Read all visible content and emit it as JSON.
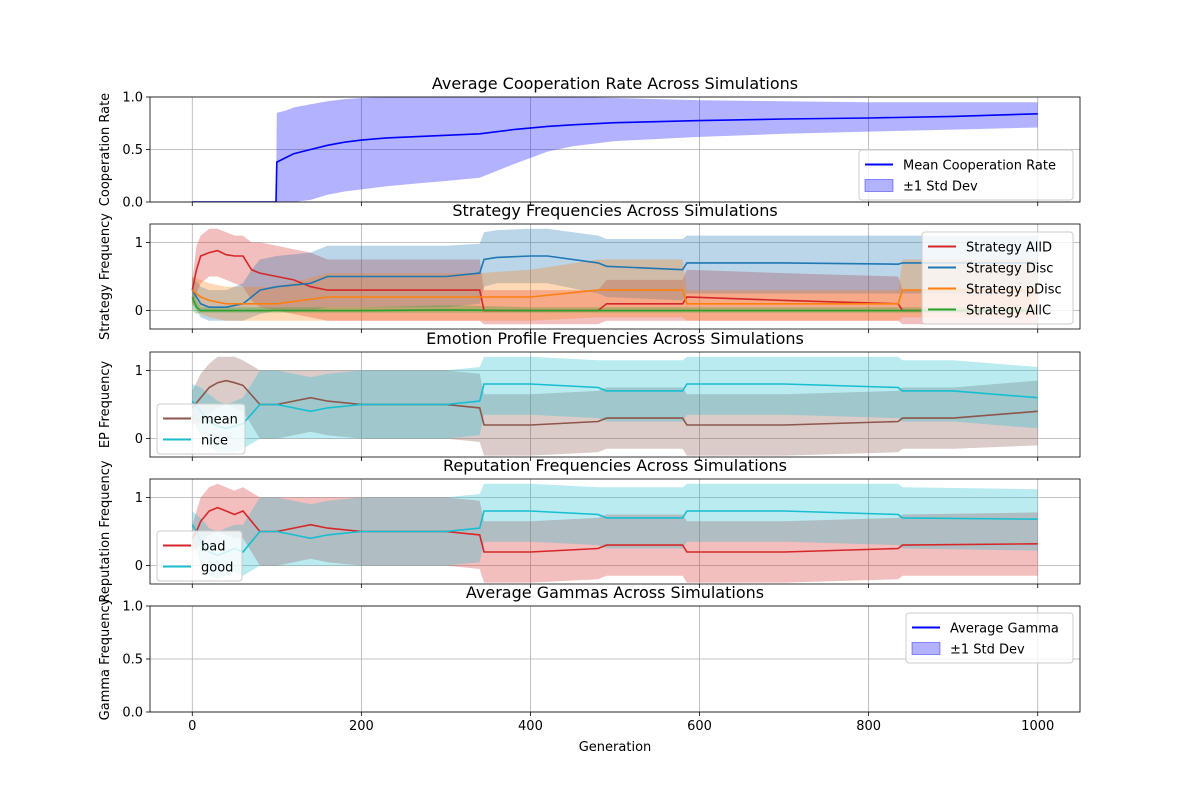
{
  "figure": {
    "xlabel": "Generation",
    "xticks": [
      0,
      200,
      400,
      600,
      800,
      1000
    ],
    "xlim": [
      -50,
      1050
    ]
  },
  "chart_data": [
    {
      "type": "line",
      "title": "Average Cooperation Rate Across Simulations",
      "xlabel": "",
      "ylabel": "Cooperation Rate",
      "ylim": [
        0,
        1
      ],
      "yticks": [
        0,
        0.5,
        1
      ],
      "yticklabels": [
        "0.0",
        "0.5",
        "1.0"
      ],
      "grid": true,
      "legend": {
        "placement": "lower right"
      },
      "series": [
        {
          "name": "Mean Cooperation Rate",
          "color": "#0000ff",
          "band_label": "±1 Std Dev",
          "band_color": "#0000ff",
          "x": [
            0,
            99,
            100,
            110,
            120,
            140,
            160,
            180,
            200,
            230,
            270,
            300,
            340,
            380,
            420,
            450,
            500,
            600,
            700,
            800,
            900,
            1000
          ],
          "values": [
            0,
            0,
            0.38,
            0.42,
            0.46,
            0.5,
            0.54,
            0.57,
            0.59,
            0.61,
            0.625,
            0.635,
            0.65,
            0.69,
            0.72,
            0.735,
            0.755,
            0.775,
            0.79,
            0.8,
            0.815,
            0.84
          ],
          "lower": [
            0,
            0,
            0,
            0,
            0,
            0.02,
            0.07,
            0.1,
            0.12,
            0.15,
            0.18,
            0.2,
            0.23,
            0.36,
            0.48,
            0.53,
            0.58,
            0.62,
            0.65,
            0.67,
            0.69,
            0.71
          ],
          "upper": [
            0,
            0,
            0.85,
            0.87,
            0.9,
            0.93,
            0.96,
            0.98,
            0.99,
            1.0,
            1.0,
            1.0,
            1.0,
            1.0,
            1.0,
            1.0,
            0.99,
            0.97,
            0.96,
            0.95,
            0.95,
            0.95
          ]
        }
      ]
    },
    {
      "type": "line",
      "title": "Strategy Frequencies Across Simulations",
      "xlabel": "",
      "ylabel": "Strategy Frequency",
      "ylim": [
        -0.27,
        1.27
      ],
      "yticks": [
        0,
        1
      ],
      "yticklabels": [
        "0",
        "1"
      ],
      "grid": true,
      "legend": {
        "placement": "right"
      },
      "series": [
        {
          "name": "Strategy AllD",
          "color": "#d62728",
          "x": [
            0,
            5,
            10,
            20,
            30,
            40,
            50,
            60,
            70,
            80,
            100,
            120,
            140,
            160,
            200,
            300,
            340,
            345,
            400,
            480,
            490,
            580,
            585,
            700,
            835,
            840,
            1000
          ],
          "values": [
            0.3,
            0.6,
            0.8,
            0.85,
            0.88,
            0.82,
            0.8,
            0.8,
            0.6,
            0.55,
            0.5,
            0.45,
            0.35,
            0.3,
            0.3,
            0.3,
            0.3,
            0.0,
            0.0,
            0.0,
            0.1,
            0.1,
            0.2,
            0.15,
            0.1,
            0.0,
            0.0
          ],
          "lower": [
            0.1,
            0.25,
            0.4,
            0.5,
            0.5,
            0.45,
            0.4,
            0.35,
            0.15,
            0.05,
            0.0,
            -0.05,
            -0.1,
            -0.15,
            -0.15,
            -0.15,
            -0.15,
            -0.2,
            -0.2,
            -0.2,
            -0.15,
            -0.15,
            -0.15,
            -0.15,
            -0.15,
            -0.2,
            -0.2
          ],
          "upper": [
            0.45,
            0.95,
            1.1,
            1.2,
            1.2,
            1.15,
            1.1,
            1.1,
            1.0,
            1.0,
            0.95,
            0.9,
            0.85,
            0.75,
            0.75,
            0.75,
            0.75,
            0.3,
            0.3,
            0.3,
            0.45,
            0.45,
            0.6,
            0.55,
            0.5,
            0.3,
            0.3
          ]
        },
        {
          "name": "Strategy Disc",
          "color": "#1f77b4",
          "x": [
            0,
            10,
            20,
            40,
            60,
            70,
            80,
            100,
            140,
            160,
            200,
            300,
            340,
            345,
            360,
            400,
            420,
            480,
            490,
            580,
            585,
            700,
            835,
            840,
            1000
          ],
          "values": [
            0.3,
            0.1,
            0.05,
            0.05,
            0.1,
            0.2,
            0.3,
            0.35,
            0.4,
            0.5,
            0.5,
            0.5,
            0.55,
            0.75,
            0.78,
            0.8,
            0.8,
            0.7,
            0.65,
            0.6,
            0.7,
            0.7,
            0.68,
            0.7,
            0.7
          ],
          "lower": [
            0.1,
            -0.1,
            -0.15,
            -0.15,
            -0.15,
            -0.1,
            -0.05,
            0.0,
            0.0,
            0.05,
            0.05,
            0.05,
            0.1,
            0.35,
            0.4,
            0.4,
            0.4,
            0.25,
            0.2,
            0.15,
            0.25,
            0.25,
            0.25,
            0.25,
            0.25
          ],
          "upper": [
            0.5,
            0.35,
            0.3,
            0.3,
            0.4,
            0.6,
            0.75,
            0.8,
            0.85,
            0.95,
            0.95,
            0.95,
            0.98,
            1.15,
            1.18,
            1.2,
            1.2,
            1.1,
            1.05,
            1.05,
            1.1,
            1.1,
            1.1,
            1.1,
            1.1
          ]
        },
        {
          "name": "Strategy pDisc",
          "color": "#ff7f0e",
          "x": [
            0,
            10,
            20,
            40,
            60,
            80,
            100,
            160,
            200,
            300,
            340,
            400,
            480,
            490,
            580,
            585,
            700,
            835,
            840,
            1000
          ],
          "values": [
            0.3,
            0.2,
            0.15,
            0.1,
            0.1,
            0.1,
            0.1,
            0.2,
            0.2,
            0.2,
            0.2,
            0.2,
            0.3,
            0.3,
            0.3,
            0.1,
            0.1,
            0.1,
            0.3,
            0.3
          ],
          "lower": [
            0.1,
            -0.05,
            -0.1,
            -0.15,
            -0.15,
            -0.15,
            -0.15,
            -0.15,
            -0.15,
            -0.15,
            -0.15,
            -0.15,
            -0.1,
            -0.1,
            -0.1,
            -0.15,
            -0.15,
            -0.15,
            -0.1,
            -0.1
          ],
          "upper": [
            0.5,
            0.45,
            0.4,
            0.35,
            0.35,
            0.35,
            0.35,
            0.55,
            0.55,
            0.55,
            0.55,
            0.6,
            0.75,
            0.75,
            0.75,
            0.3,
            0.3,
            0.3,
            0.75,
            0.75
          ]
        },
        {
          "name": "Strategy AllC",
          "color": "#2ca02c",
          "x": [
            0,
            5,
            10,
            20,
            50,
            100,
            200,
            300,
            400,
            500,
            600,
            700,
            800,
            900,
            1000
          ],
          "values": [
            0.2,
            0.05,
            0.0,
            0.0,
            0.0,
            0.0,
            0.0,
            0.01,
            0.0,
            0.0,
            0.0,
            0.0,
            0.0,
            0.0,
            0.0
          ],
          "lower": [
            0.0,
            -0.05,
            -0.03,
            -0.03,
            -0.03,
            -0.03,
            -0.03,
            -0.03,
            -0.03,
            -0.03,
            -0.03,
            -0.03,
            -0.03,
            -0.03,
            -0.03
          ],
          "upper": [
            0.4,
            0.15,
            0.05,
            0.05,
            0.05,
            0.05,
            0.05,
            0.08,
            0.05,
            0.05,
            0.05,
            0.05,
            0.05,
            0.05,
            0.05
          ]
        }
      ]
    },
    {
      "type": "line",
      "title": "Emotion Profile Frequencies Across Simulations",
      "xlabel": "",
      "ylabel": "EP Frequency",
      "ylim": [
        -0.27,
        1.27
      ],
      "yticks": [
        0,
        1
      ],
      "yticklabels": [
        "0",
        "1"
      ],
      "grid": true,
      "legend": {
        "placement": "lower left"
      },
      "series": [
        {
          "name": "mean",
          "color": "#8c564b",
          "x": [
            0,
            10,
            20,
            30,
            40,
            50,
            60,
            80,
            100,
            120,
            140,
            160,
            200,
            300,
            340,
            345,
            400,
            480,
            490,
            580,
            585,
            700,
            835,
            840,
            900,
            1000
          ],
          "values": [
            0.45,
            0.6,
            0.75,
            0.82,
            0.85,
            0.82,
            0.78,
            0.5,
            0.5,
            0.55,
            0.6,
            0.55,
            0.5,
            0.5,
            0.45,
            0.2,
            0.2,
            0.25,
            0.3,
            0.3,
            0.2,
            0.2,
            0.25,
            0.3,
            0.3,
            0.4
          ],
          "lower": [
            0.2,
            0.25,
            0.35,
            0.45,
            0.5,
            0.45,
            0.4,
            0.0,
            0.0,
            0.05,
            0.1,
            0.05,
            0.0,
            0.0,
            -0.05,
            -0.25,
            -0.25,
            -0.2,
            -0.15,
            -0.15,
            -0.25,
            -0.25,
            -0.2,
            -0.15,
            -0.15,
            -0.1
          ],
          "upper": [
            0.7,
            0.95,
            1.1,
            1.2,
            1.2,
            1.2,
            1.15,
            1.0,
            1.0,
            1.0,
            1.0,
            1.0,
            1.0,
            1.0,
            0.95,
            0.65,
            0.65,
            0.7,
            0.75,
            0.75,
            0.65,
            0.65,
            0.7,
            0.75,
            0.75,
            0.85
          ]
        },
        {
          "name": "nice",
          "color": "#17becf",
          "x": [
            0,
            10,
            20,
            30,
            40,
            50,
            60,
            80,
            100,
            120,
            140,
            160,
            200,
            300,
            340,
            345,
            400,
            480,
            490,
            580,
            585,
            700,
            835,
            840,
            900,
            1000
          ],
          "values": [
            0.55,
            0.4,
            0.25,
            0.18,
            0.15,
            0.18,
            0.22,
            0.5,
            0.5,
            0.45,
            0.4,
            0.45,
            0.5,
            0.5,
            0.55,
            0.8,
            0.8,
            0.75,
            0.7,
            0.7,
            0.8,
            0.8,
            0.75,
            0.7,
            0.7,
            0.6
          ],
          "lower": [
            0.3,
            0.05,
            -0.1,
            -0.2,
            -0.2,
            -0.2,
            -0.15,
            0.0,
            0.0,
            0.0,
            0.0,
            0.0,
            0.0,
            0.0,
            0.05,
            0.35,
            0.35,
            0.3,
            0.25,
            0.25,
            0.35,
            0.35,
            0.3,
            0.25,
            0.25,
            0.15
          ],
          "upper": [
            0.8,
            0.75,
            0.65,
            0.55,
            0.5,
            0.55,
            0.6,
            1.0,
            1.0,
            0.95,
            0.9,
            0.95,
            1.0,
            1.0,
            1.05,
            1.2,
            1.2,
            1.15,
            1.15,
            1.15,
            1.2,
            1.2,
            1.2,
            1.15,
            1.15,
            1.05
          ]
        }
      ]
    },
    {
      "type": "line",
      "title": "Reputation Frequencies Across Simulations",
      "xlabel": "",
      "ylabel": "Reputation Frequency",
      "ylim": [
        -0.27,
        1.27
      ],
      "yticks": [
        0,
        1
      ],
      "yticklabels": [
        "0",
        "1"
      ],
      "grid": true,
      "legend": {
        "placement": "lower left"
      },
      "series": [
        {
          "name": "bad",
          "color": "#d62728",
          "x": [
            0,
            5,
            10,
            20,
            30,
            40,
            50,
            60,
            80,
            100,
            120,
            140,
            160,
            200,
            300,
            340,
            345,
            400,
            480,
            490,
            580,
            585,
            700,
            835,
            840,
            1000
          ],
          "values": [
            0.4,
            0.5,
            0.65,
            0.8,
            0.85,
            0.8,
            0.75,
            0.8,
            0.5,
            0.5,
            0.55,
            0.6,
            0.55,
            0.5,
            0.5,
            0.45,
            0.2,
            0.2,
            0.25,
            0.3,
            0.3,
            0.2,
            0.2,
            0.25,
            0.3,
            0.32
          ],
          "lower": [
            0.2,
            0.25,
            0.3,
            0.45,
            0.5,
            0.45,
            0.4,
            0.4,
            0.0,
            0.0,
            0.05,
            0.1,
            0.05,
            0.0,
            0.0,
            -0.05,
            -0.25,
            -0.25,
            -0.2,
            -0.15,
            -0.15,
            -0.25,
            -0.25,
            -0.2,
            -0.15,
            -0.15
          ],
          "upper": [
            0.6,
            0.8,
            1.0,
            1.15,
            1.2,
            1.15,
            1.1,
            1.15,
            1.0,
            1.0,
            1.0,
            1.0,
            1.0,
            1.0,
            1.0,
            0.95,
            0.65,
            0.65,
            0.7,
            0.75,
            0.75,
            0.65,
            0.65,
            0.7,
            0.75,
            0.78
          ]
        },
        {
          "name": "good",
          "color": "#17becf",
          "x": [
            0,
            5,
            10,
            20,
            30,
            40,
            50,
            60,
            80,
            100,
            120,
            140,
            160,
            200,
            300,
            340,
            345,
            400,
            480,
            490,
            580,
            585,
            700,
            835,
            840,
            1000
          ],
          "values": [
            0.6,
            0.5,
            0.35,
            0.2,
            0.15,
            0.2,
            0.25,
            0.2,
            0.5,
            0.5,
            0.45,
            0.4,
            0.45,
            0.5,
            0.5,
            0.55,
            0.8,
            0.8,
            0.75,
            0.7,
            0.7,
            0.8,
            0.8,
            0.75,
            0.7,
            0.68
          ],
          "lower": [
            0.4,
            0.2,
            0.0,
            -0.15,
            -0.2,
            -0.15,
            -0.1,
            -0.15,
            0.0,
            0.0,
            0.0,
            0.0,
            0.0,
            0.0,
            0.0,
            0.05,
            0.35,
            0.35,
            0.3,
            0.25,
            0.25,
            0.35,
            0.35,
            0.3,
            0.25,
            0.22
          ],
          "upper": [
            0.8,
            0.75,
            0.7,
            0.55,
            0.5,
            0.55,
            0.6,
            0.6,
            1.0,
            1.0,
            0.95,
            0.9,
            0.95,
            1.0,
            1.0,
            1.05,
            1.2,
            1.2,
            1.15,
            1.15,
            1.15,
            1.2,
            1.2,
            1.2,
            1.15,
            1.12
          ]
        }
      ]
    },
    {
      "type": "line",
      "title": "Average Gammas Across Simulations",
      "xlabel": "Generation",
      "ylabel": "Gamma Frequency",
      "ylim": [
        0,
        1
      ],
      "yticks": [
        0,
        0.5,
        1
      ],
      "yticklabels": [
        "0.0",
        "0.5",
        "1.0"
      ],
      "grid": true,
      "legend": {
        "placement": "upper right"
      },
      "series": [
        {
          "name": "Average Gamma",
          "color": "#0000ff",
          "band_label": "±1 Std Dev",
          "band_color": "#0000ff",
          "x": [],
          "values": [],
          "lower": [],
          "upper": []
        }
      ]
    }
  ]
}
